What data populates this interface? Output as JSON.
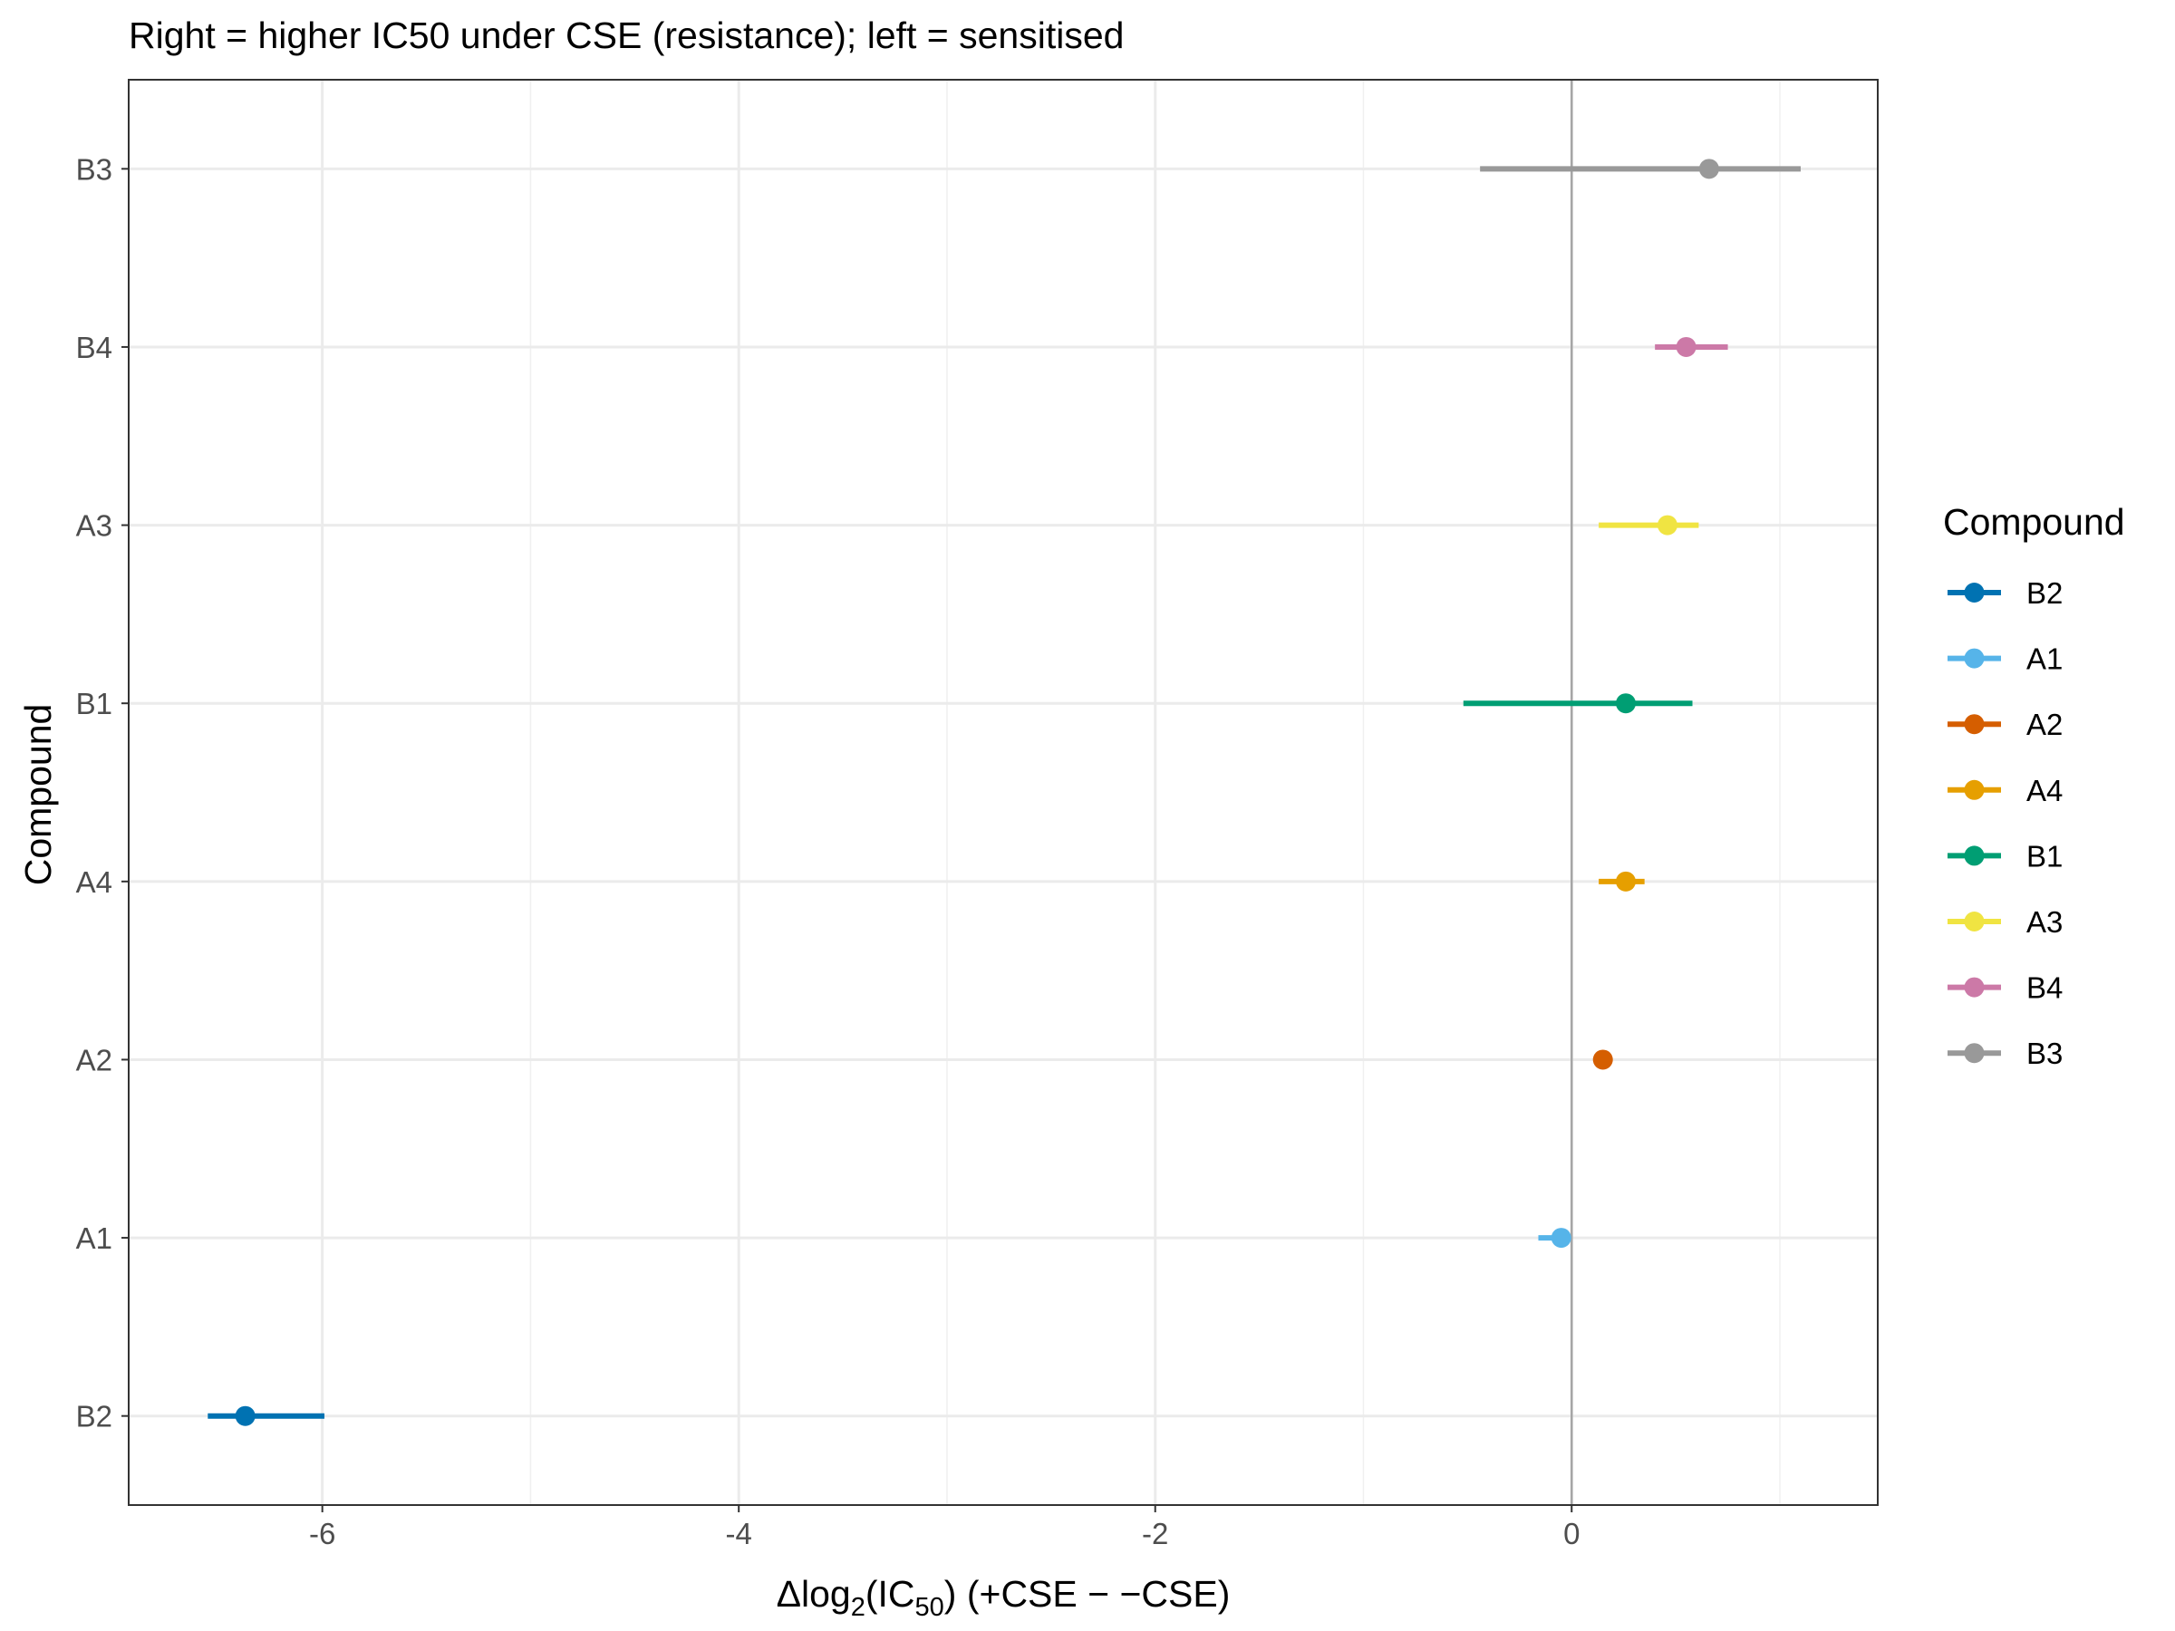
{
  "chart_data": {
    "type": "forest",
    "subtitle": "Right = higher IC50 under CSE (resistance); left = sensitised",
    "xlabel": {
      "prefix": "Δlog",
      "sub1": "2",
      "mid": "(IC",
      "sub2": "50",
      "suffix": ") (+CSE − −CSE)"
    },
    "ylabel": "Compound",
    "xlim": [
      -6.93,
      1.47
    ],
    "xticks": [
      -6,
      -4,
      -2,
      0
    ],
    "xtick_labels": [
      "-6",
      "-4",
      "-2",
      "0"
    ],
    "reference_line_x": 0,
    "grid": true,
    "categories": [
      "B2",
      "A1",
      "A2",
      "A4",
      "B1",
      "A3",
      "B4",
      "B3"
    ],
    "series": [
      {
        "name": "B2",
        "category": "B2",
        "value": -6.37,
        "lower": -6.55,
        "upper": -5.99,
        "color": "#0072B2"
      },
      {
        "name": "A1",
        "category": "A1",
        "value": -0.05,
        "lower": -0.16,
        "upper": -0.01,
        "color": "#56B4E9"
      },
      {
        "name": "A2",
        "category": "A2",
        "value": 0.15,
        "lower": 0.15,
        "upper": 0.15,
        "color": "#D55E00"
      },
      {
        "name": "A4",
        "category": "A4",
        "value": 0.26,
        "lower": 0.13,
        "upper": 0.35,
        "color": "#E69F00"
      },
      {
        "name": "B1",
        "category": "B1",
        "value": 0.26,
        "lower": -0.52,
        "upper": 0.58,
        "color": "#009E73"
      },
      {
        "name": "A3",
        "category": "A3",
        "value": 0.46,
        "lower": 0.13,
        "upper": 0.61,
        "color": "#F0E442"
      },
      {
        "name": "B4",
        "category": "B4",
        "value": 0.55,
        "lower": 0.4,
        "upper": 0.75,
        "color": "#CC79A7"
      },
      {
        "name": "B3",
        "category": "B3",
        "value": 0.66,
        "lower": -0.44,
        "upper": 1.1,
        "color": "#999999"
      }
    ],
    "legend": {
      "title": "Compound",
      "position": "right",
      "order": [
        "B2",
        "A1",
        "A2",
        "A4",
        "B1",
        "A3",
        "B4",
        "B3"
      ]
    }
  }
}
